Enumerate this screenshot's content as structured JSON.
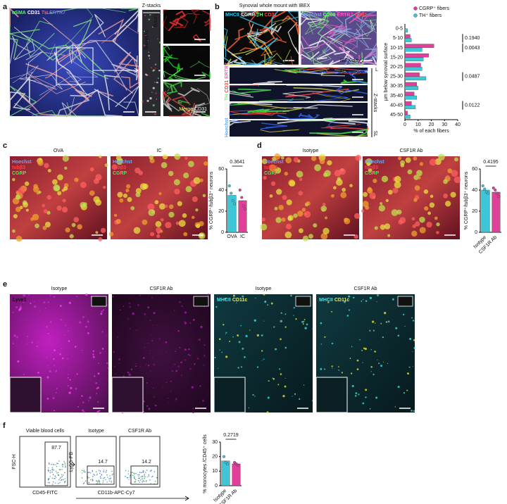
{
  "panels": {
    "a": {
      "letter": "a",
      "channels": [
        "αSMA",
        "CD31",
        "TH",
        "ERTR7"
      ],
      "zstacks": "Z-stacks",
      "sublining": "Sublining",
      "lining": "Lining",
      "insets": [
        "TH",
        "αSMA",
        "Merge",
        "CD31"
      ]
    },
    "b": {
      "letter": "b",
      "title": "Synovial whole mount with IBEX",
      "day1_channels": [
        "MHCII",
        "CGRP",
        "TH",
        "CD31"
      ],
      "day2_channels": [
        "Hoechst",
        "CD68",
        "ERTR7",
        "CD31"
      ],
      "day1": "IBEX day 1",
      "day2": "IBEX day 2",
      "merge": "IBEX merge",
      "slices": [
        1,
        2,
        3,
        4
      ],
      "merge_channels": [
        "Hoechst",
        "CGRP",
        "TH",
        "CD31",
        "ERTR7"
      ],
      "lining": "L",
      "zstacks": "Z-stacks",
      "sublining": "SL"
    },
    "c": {
      "letter": "c",
      "images": [
        "OVA",
        "IC"
      ],
      "channels": [
        "Hoechst",
        "tubβ3",
        "CGRP"
      ]
    },
    "d": {
      "letter": "d",
      "images": [
        "Isotype",
        "CSF1R Ab"
      ],
      "channels": [
        "Hoechst",
        "tubβ3",
        "CGRP"
      ]
    },
    "e": {
      "letter": "e",
      "images": [
        "Isotype",
        "CSF1R Ab",
        "Isotype",
        "CSF1R Ab"
      ],
      "lyve": "Lyve1",
      "mhc": [
        "MHCII",
        "CD11c"
      ]
    },
    "f": {
      "letter": "f",
      "plots": [
        {
          "title": "Viable blood cells",
          "gate": 87.7
        },
        {
          "title": "Isotype",
          "gate": 14.7
        },
        {
          "title": "CSF1R Ab",
          "gate": 14.2
        }
      ],
      "fsc": "FSC-H",
      "cd45": "CD45-FITC",
      "ly6g": "Ly6G-PB",
      "cd11b": "CD11b-APC-Cy7"
    }
  },
  "chart_data": [
    {
      "type": "hbar",
      "xlabel": "% of each fibers",
      "ylabel": "µm below synovial surface",
      "categories": [
        "0-5",
        "5-10",
        "10-15",
        "15-20",
        "20-25",
        "25-30",
        "30-35",
        "35-40",
        "40-45",
        "45-50"
      ],
      "series": [
        {
          "name": "CGRP⁺ fibers",
          "color": "#e0409a",
          "values": [
            0,
            4,
            22,
            18,
            12,
            11,
            9,
            7,
            5,
            2
          ]
        },
        {
          "name": "TH⁺ fibers",
          "color": "#3fc6d6",
          "values": [
            2,
            5,
            13,
            14,
            13,
            16,
            10,
            9,
            8,
            4
          ]
        }
      ],
      "xlim": [
        0,
        40
      ],
      "xticks": [
        0,
        10,
        20,
        30,
        40
      ],
      "annotations": [
        {
          "category": "5-10",
          "text": "0.1940"
        },
        {
          "category": "10-15",
          "text": "0.0043"
        },
        {
          "category": "25-30",
          "text": "0.0487"
        },
        {
          "category": "40-45",
          "text": "0.0122"
        }
      ]
    },
    {
      "type": "bar",
      "ylabel": "% CGRP⁺/tubβ3⁺ neurons",
      "categories": [
        "OVA",
        "IC"
      ],
      "values": [
        35,
        30
      ],
      "points": [
        [
          44,
          37,
          30,
          27
        ],
        [
          40,
          33,
          25,
          22
        ]
      ],
      "colors": [
        "#3fc6d6",
        "#e0409a"
      ],
      "ylim": [
        0,
        60
      ],
      "yticks": [
        0,
        20,
        40,
        60
      ],
      "annotation": "0.3641"
    },
    {
      "type": "bar",
      "ylabel": "% CGRP⁺/tubβ3⁺ neurons",
      "categories": [
        "Isotype",
        "CSF1R Ab"
      ],
      "values": [
        40,
        38
      ],
      "points": [
        [
          44,
          41,
          38,
          37
        ],
        [
          42,
          40,
          37,
          34
        ]
      ],
      "colors": [
        "#3fc6d6",
        "#e0409a"
      ],
      "ylim": [
        0,
        60
      ],
      "yticks": [
        0,
        20,
        40,
        60
      ],
      "annotation": "0.4195"
    },
    {
      "type": "bar",
      "ylabel": "% monocytes /CD45⁺ cells",
      "categories": [
        "Isotype",
        "CSF1R Ab"
      ],
      "values": [
        17,
        15
      ],
      "points": [
        [
          20,
          16,
          15
        ],
        [
          16,
          15,
          14
        ]
      ],
      "colors": [
        "#3fc6d6",
        "#e0409a"
      ],
      "ylim": [
        0,
        30
      ],
      "yticks": [
        0,
        10,
        20,
        30
      ],
      "annotation": "0.2719"
    }
  ]
}
